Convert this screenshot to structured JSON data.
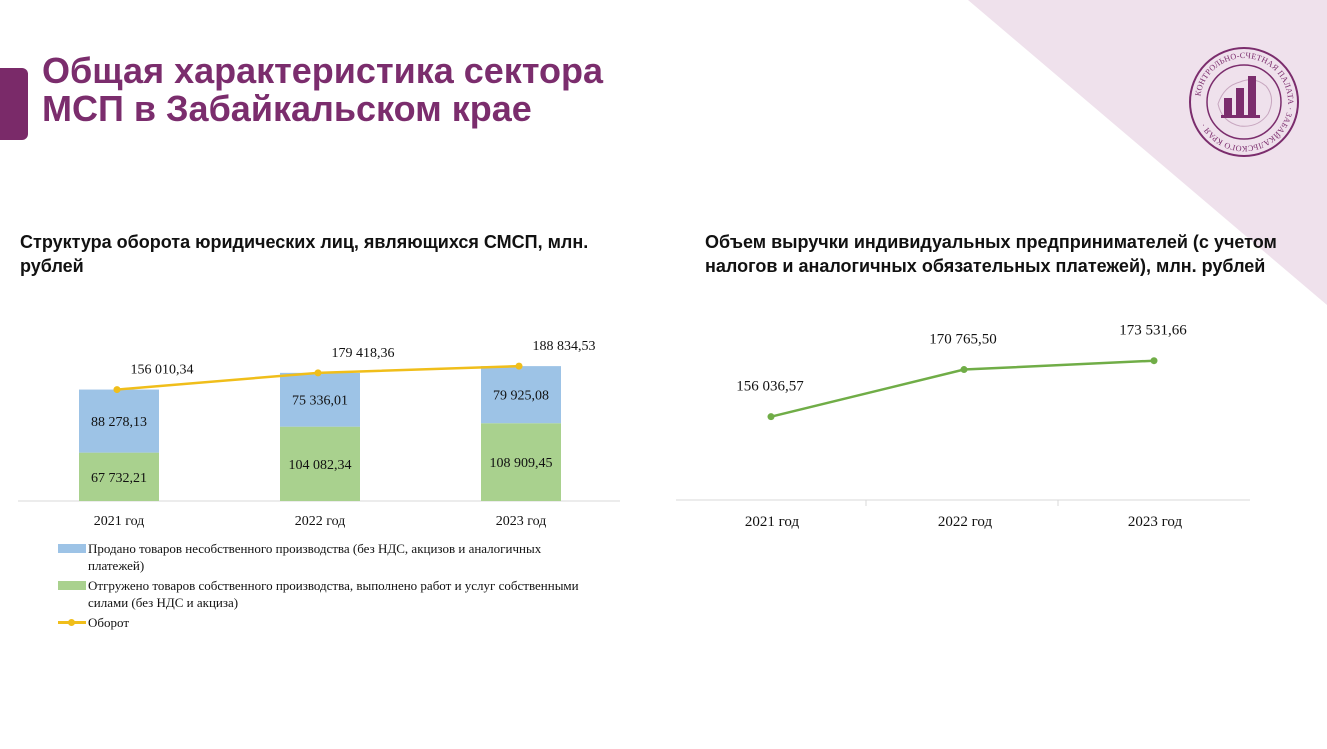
{
  "page": {
    "title_line1": "Общая характеристика сектора",
    "title_line2": "МСП в Забайкальском крае",
    "logo": {
      "icon": "bar-chart-seal-icon",
      "text": "КОНТРОЛЬНО-СЧЕТНАЯ ПАЛАТА ЗАБАЙКАЛЬСКОГО КРАЯ"
    },
    "colors": {
      "accent": "#7b2d6d",
      "corner": "#efe1ec"
    }
  },
  "chart_data": [
    {
      "type": "bar",
      "stacked": true,
      "title": "Структура оборота юридических лиц, являющихся СМСП, млн. рублей",
      "categories": [
        "2021 год",
        "2022 год",
        "2023 год"
      ],
      "series": [
        {
          "name": "Отгружено товаров собственного производства, выполнено работ и услуг собственными силами (без НДС и акциза)",
          "values": [
            67732.21,
            104082.34,
            108909.45
          ],
          "labels": [
            "67 732,21",
            "104 082,34",
            "108 909,45"
          ],
          "color": "#a9d18e"
        },
        {
          "name": "Продано товаров несобственного производства (без НДС, акцизов и аналогичных платежей)",
          "values": [
            88278.13,
            75336.01,
            79925.08
          ],
          "labels": [
            "88 278,13",
            "75 336,01",
            "79 925,08"
          ],
          "color": "#9dc3e6"
        },
        {
          "name": "Оборот",
          "type": "line",
          "values": [
            156010.34,
            179418.36,
            188834.53
          ],
          "labels": [
            "156 010,34",
            "179 418,36",
            "188 834,53"
          ],
          "color": "#f0be1a"
        }
      ],
      "ylim": [
        0,
        210000
      ],
      "legend": "bottom",
      "grid": false
    },
    {
      "type": "line",
      "title": "Объем выручки индивидуальных предпринимателей (с учетом налогов и аналогичных обязательных платежей), млн. рублей",
      "categories": [
        "2021 год",
        "2022 год",
        "2023 год"
      ],
      "series": [
        {
          "values": [
            156036.57,
            170765.5,
            173531.66
          ],
          "labels": [
            "156 036,57",
            "170 765,50",
            "173 531,66"
          ],
          "color": "#70ad47"
        }
      ],
      "ylim": [
        130000,
        180000
      ],
      "legend": "none",
      "grid": false
    }
  ]
}
